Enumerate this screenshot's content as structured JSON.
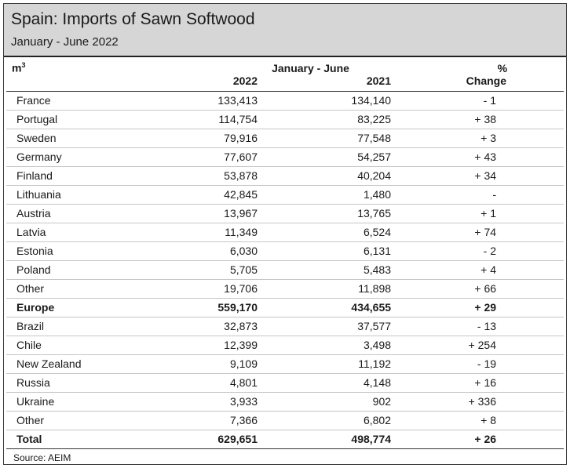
{
  "title": "Spain: Imports of Sawn Softwood",
  "subtitle": "January - June 2022",
  "header": {
    "unit": "m",
    "unit_superscript": "3",
    "period": "January - June",
    "col_2022": "2022",
    "col_2021": "2021",
    "pct_line1": "%",
    "pct_line2": "Change"
  },
  "rows": [
    {
      "country": "France",
      "v2022": "133,413",
      "v2021": "134,140",
      "change": "- 1"
    },
    {
      "country": "Portugal",
      "v2022": "114,754",
      "v2021": "83,225",
      "change": "+ 38"
    },
    {
      "country": "Sweden",
      "v2022": "79,916",
      "v2021": "77,548",
      "change": "+ 3"
    },
    {
      "country": "Germany",
      "v2022": "77,607",
      "v2021": "54,257",
      "change": "+ 43"
    },
    {
      "country": "Finland",
      "v2022": "53,878",
      "v2021": "40,204",
      "change": "+ 34"
    },
    {
      "country": "Lithuania",
      "v2022": "42,845",
      "v2021": "1,480",
      "change": "-"
    },
    {
      "country": "Austria",
      "v2022": "13,967",
      "v2021": "13,765",
      "change": "+ 1"
    },
    {
      "country": "Latvia",
      "v2022": "11,349",
      "v2021": "6,524",
      "change": "+ 74"
    },
    {
      "country": "Estonia",
      "v2022": "6,030",
      "v2021": "6,131",
      "change": "- 2"
    },
    {
      "country": "Poland",
      "v2022": "5,705",
      "v2021": "5,483",
      "change": "+ 4"
    },
    {
      "country": "Other",
      "v2022": "19,706",
      "v2021": "11,898",
      "change": "+ 66"
    },
    {
      "country": "Europe",
      "v2022": "559,170",
      "v2021": "434,655",
      "change": "+ 29",
      "bold": true
    },
    {
      "country": "Brazil",
      "v2022": "32,873",
      "v2021": "37,577",
      "change": "- 13"
    },
    {
      "country": "Chile",
      "v2022": "12,399",
      "v2021": "3,498",
      "change": "+ 254"
    },
    {
      "country": "New Zealand",
      "v2022": "9,109",
      "v2021": "11,192",
      "change": "- 19"
    },
    {
      "country": "Russia",
      "v2022": "4,801",
      "v2021": "4,148",
      "change": "+ 16"
    },
    {
      "country": "Ukraine",
      "v2022": "3,933",
      "v2021": "902",
      "change": "+ 336"
    },
    {
      "country": "Other",
      "v2022": "7,366",
      "v2021": "6,802",
      "change": "+ 8"
    },
    {
      "country": "Total",
      "v2022": "629,651",
      "v2021": "498,774",
      "change": "+ 26",
      "bold": true,
      "total": true
    }
  ],
  "source": "Source:  AEIM"
}
